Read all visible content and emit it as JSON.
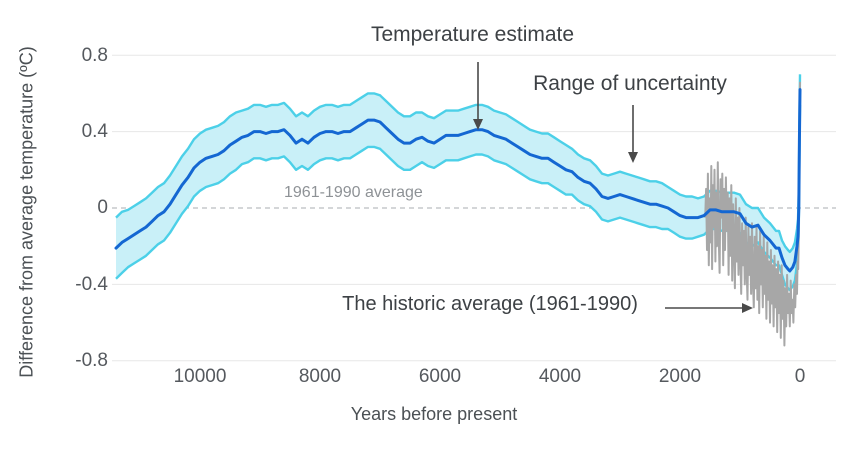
{
  "chart_data": {
    "type": "line",
    "description": "Holocene temperature reconstruction with uncertainty band, recent annual record and modern spike",
    "x_axis": {
      "label": "Years before present",
      "ticks": [
        10000,
        8000,
        6000,
        4000,
        2000,
        0
      ],
      "tick_labels": [
        "10000",
        "8000",
        "6000",
        "4000",
        "2000",
        "0"
      ],
      "range": [
        11500,
        0
      ]
    },
    "y_axis": {
      "label": "Difference from average temperature (ºC)",
      "ticks": [
        0.8,
        0.4,
        0,
        -0.4,
        -0.8
      ],
      "tick_labels": [
        "0.8",
        "0.4",
        "0",
        "-0.4",
        "-0.8"
      ],
      "range": [
        -0.9,
        0.85
      ]
    },
    "baseline": {
      "label": "1961-1990 average",
      "value": 0
    },
    "colors": {
      "line": "#1467d2",
      "band_fill": "#c9f0f8",
      "band_edge": "#4cd0e8",
      "gray": "#a7a7a7",
      "grid": "#e7e7e7",
      "baseline": "#a8adb2",
      "text_dark": "#3d4145",
      "text_gray": "#8e9296"
    },
    "legend_position": "annotated-inline",
    "grid": true,
    "series": [
      {
        "name": "Temperature estimate",
        "type": "line-with-band",
        "band_name": "Range of uncertainty",
        "points_format": [
          "years_before_present",
          "mean_degC",
          "band_half_width_degC"
        ],
        "points": [
          [
            11400,
            -0.21,
            0.16
          ],
          [
            11300,
            -0.18,
            0.16
          ],
          [
            11200,
            -0.16,
            0.15
          ],
          [
            11100,
            -0.14,
            0.15
          ],
          [
            11000,
            -0.12,
            0.15
          ],
          [
            10900,
            -0.1,
            0.15
          ],
          [
            10800,
            -0.07,
            0.15
          ],
          [
            10700,
            -0.04,
            0.15
          ],
          [
            10600,
            -0.02,
            0.15
          ],
          [
            10500,
            0.02,
            0.15
          ],
          [
            10400,
            0.07,
            0.15
          ],
          [
            10300,
            0.12,
            0.15
          ],
          [
            10200,
            0.16,
            0.15
          ],
          [
            10100,
            0.21,
            0.15
          ],
          [
            10000,
            0.24,
            0.15
          ],
          [
            9900,
            0.26,
            0.15
          ],
          [
            9800,
            0.27,
            0.15
          ],
          [
            9700,
            0.28,
            0.15
          ],
          [
            9600,
            0.3,
            0.15
          ],
          [
            9500,
            0.33,
            0.15
          ],
          [
            9400,
            0.35,
            0.15
          ],
          [
            9300,
            0.37,
            0.14
          ],
          [
            9200,
            0.38,
            0.14
          ],
          [
            9100,
            0.4,
            0.14
          ],
          [
            9000,
            0.4,
            0.14
          ],
          [
            8900,
            0.39,
            0.14
          ],
          [
            8800,
            0.4,
            0.14
          ],
          [
            8700,
            0.4,
            0.14
          ],
          [
            8600,
            0.41,
            0.14
          ],
          [
            8500,
            0.38,
            0.14
          ],
          [
            8400,
            0.34,
            0.14
          ],
          [
            8300,
            0.36,
            0.14
          ],
          [
            8200,
            0.34,
            0.14
          ],
          [
            8100,
            0.37,
            0.14
          ],
          [
            8000,
            0.39,
            0.14
          ],
          [
            7900,
            0.4,
            0.14
          ],
          [
            7800,
            0.4,
            0.14
          ],
          [
            7700,
            0.39,
            0.14
          ],
          [
            7600,
            0.4,
            0.14
          ],
          [
            7500,
            0.4,
            0.14
          ],
          [
            7400,
            0.42,
            0.14
          ],
          [
            7300,
            0.44,
            0.14
          ],
          [
            7200,
            0.46,
            0.14
          ],
          [
            7100,
            0.46,
            0.14
          ],
          [
            7000,
            0.45,
            0.14
          ],
          [
            6900,
            0.42,
            0.14
          ],
          [
            6800,
            0.39,
            0.14
          ],
          [
            6700,
            0.36,
            0.14
          ],
          [
            6600,
            0.34,
            0.14
          ],
          [
            6500,
            0.34,
            0.14
          ],
          [
            6400,
            0.36,
            0.14
          ],
          [
            6300,
            0.37,
            0.13
          ],
          [
            6200,
            0.35,
            0.13
          ],
          [
            6100,
            0.34,
            0.13
          ],
          [
            6000,
            0.36,
            0.13
          ],
          [
            5900,
            0.38,
            0.13
          ],
          [
            5800,
            0.38,
            0.13
          ],
          [
            5700,
            0.38,
            0.13
          ],
          [
            5600,
            0.39,
            0.13
          ],
          [
            5500,
            0.4,
            0.13
          ],
          [
            5400,
            0.41,
            0.13
          ],
          [
            5300,
            0.41,
            0.13
          ],
          [
            5200,
            0.4,
            0.13
          ],
          [
            5100,
            0.38,
            0.13
          ],
          [
            5000,
            0.37,
            0.13
          ],
          [
            4900,
            0.36,
            0.13
          ],
          [
            4800,
            0.34,
            0.13
          ],
          [
            4700,
            0.32,
            0.13
          ],
          [
            4600,
            0.3,
            0.13
          ],
          [
            4500,
            0.28,
            0.13
          ],
          [
            4400,
            0.27,
            0.13
          ],
          [
            4300,
            0.26,
            0.13
          ],
          [
            4200,
            0.26,
            0.13
          ],
          [
            4100,
            0.24,
            0.13
          ],
          [
            4000,
            0.22,
            0.13
          ],
          [
            3900,
            0.2,
            0.13
          ],
          [
            3800,
            0.19,
            0.12
          ],
          [
            3700,
            0.16,
            0.12
          ],
          [
            3600,
            0.14,
            0.12
          ],
          [
            3500,
            0.13,
            0.12
          ],
          [
            3400,
            0.1,
            0.12
          ],
          [
            3300,
            0.06,
            0.12
          ],
          [
            3200,
            0.05,
            0.12
          ],
          [
            3100,
            0.06,
            0.12
          ],
          [
            3000,
            0.07,
            0.12
          ],
          [
            2900,
            0.06,
            0.12
          ],
          [
            2800,
            0.05,
            0.12
          ],
          [
            2700,
            0.04,
            0.12
          ],
          [
            2600,
            0.03,
            0.12
          ],
          [
            2500,
            0.02,
            0.12
          ],
          [
            2400,
            0.02,
            0.12
          ],
          [
            2300,
            0.01,
            0.12
          ],
          [
            2200,
            0.0,
            0.11
          ],
          [
            2100,
            -0.02,
            0.11
          ],
          [
            2000,
            -0.04,
            0.11
          ],
          [
            1900,
            -0.05,
            0.11
          ],
          [
            1800,
            -0.05,
            0.11
          ],
          [
            1700,
            -0.05,
            0.1
          ],
          [
            1600,
            -0.04,
            0.1
          ],
          [
            1500,
            -0.01,
            0.1
          ],
          [
            1400,
            -0.01,
            0.1
          ],
          [
            1300,
            -0.02,
            0.1
          ],
          [
            1200,
            -0.02,
            0.1
          ],
          [
            1100,
            -0.02,
            0.1
          ],
          [
            1000,
            -0.03,
            0.1
          ],
          [
            900,
            -0.08,
            0.1
          ],
          [
            800,
            -0.1,
            0.1
          ],
          [
            700,
            -0.09,
            0.09
          ],
          [
            600,
            -0.14,
            0.09
          ],
          [
            500,
            -0.17,
            0.09
          ],
          [
            400,
            -0.21,
            0.09
          ],
          [
            350,
            -0.21,
            0.09
          ],
          [
            300,
            -0.26,
            0.09
          ],
          [
            250,
            -0.3,
            0.1
          ],
          [
            200,
            -0.32,
            0.1
          ],
          [
            170,
            -0.33,
            0.1
          ],
          [
            120,
            -0.31,
            0.1
          ],
          [
            85,
            -0.28,
            0.1
          ],
          [
            50,
            -0.2,
            0.09
          ],
          [
            33,
            -0.15,
            0.09
          ],
          [
            20,
            0.0,
            0.09
          ],
          [
            10,
            0.35,
            0.09
          ],
          [
            0,
            0.62,
            0.08
          ]
        ]
      },
      {
        "name": "The historic average (1961-1990)",
        "type": "line",
        "points_format": [
          "years_before_present",
          "degC"
        ],
        "points": [
          [
            1580,
            -0.05
          ],
          [
            1565,
            0.1
          ],
          [
            1550,
            -0.22
          ],
          [
            1535,
            0.18
          ],
          [
            1520,
            -0.3
          ],
          [
            1505,
            0.05
          ],
          [
            1490,
            -0.18
          ],
          [
            1478,
            0.22
          ],
          [
            1465,
            -0.32
          ],
          [
            1450,
            0.12
          ],
          [
            1438,
            -0.1
          ],
          [
            1425,
            0.2
          ],
          [
            1410,
            -0.28
          ],
          [
            1398,
            0.08
          ],
          [
            1385,
            -0.2
          ],
          [
            1370,
            0.24
          ],
          [
            1355,
            -0.15
          ],
          [
            1340,
            -0.34
          ],
          [
            1325,
            0.15
          ],
          [
            1310,
            -0.05
          ],
          [
            1295,
            0.18
          ],
          [
            1280,
            -0.3
          ],
          [
            1265,
            0.1
          ],
          [
            1250,
            -0.22
          ],
          [
            1235,
            0.16
          ],
          [
            1220,
            -0.12
          ],
          [
            1205,
            0.08
          ],
          [
            1190,
            -0.35
          ],
          [
            1175,
            0.05
          ],
          [
            1160,
            -0.25
          ],
          [
            1145,
            0.12
          ],
          [
            1130,
            -0.38
          ],
          [
            1115,
            0.02
          ],
          [
            1100,
            -0.2
          ],
          [
            1085,
            -0.42
          ],
          [
            1070,
            0.05
          ],
          [
            1055,
            -0.28
          ],
          [
            1040,
            -0.05
          ],
          [
            1025,
            -0.35
          ],
          [
            1010,
            0.0
          ],
          [
            995,
            -0.25
          ],
          [
            980,
            -0.45
          ],
          [
            965,
            -0.08
          ],
          [
            950,
            -0.3
          ],
          [
            935,
            -0.12
          ],
          [
            920,
            -0.4
          ],
          [
            905,
            -0.05
          ],
          [
            890,
            -0.32
          ],
          [
            875,
            -0.48
          ],
          [
            860,
            -0.1
          ],
          [
            845,
            -0.35
          ],
          [
            830,
            -0.15
          ],
          [
            815,
            -0.45
          ],
          [
            800,
            -0.08
          ],
          [
            785,
            -0.38
          ],
          [
            770,
            -0.52
          ],
          [
            755,
            -0.15
          ],
          [
            740,
            -0.42
          ],
          [
            725,
            -0.1
          ],
          [
            710,
            -0.48
          ],
          [
            695,
            -0.2
          ],
          [
            680,
            -0.55
          ],
          [
            665,
            -0.12
          ],
          [
            650,
            -0.4
          ],
          [
            635,
            -0.22
          ],
          [
            620,
            -0.52
          ],
          [
            605,
            -0.15
          ],
          [
            590,
            -0.45
          ],
          [
            575,
            -0.25
          ],
          [
            560,
            -0.58
          ],
          [
            545,
            -0.18
          ],
          [
            530,
            -0.48
          ],
          [
            515,
            -0.28
          ],
          [
            500,
            -0.6
          ],
          [
            485,
            -0.22
          ],
          [
            470,
            -0.5
          ],
          [
            455,
            -0.3
          ],
          [
            440,
            -0.62
          ],
          [
            425,
            -0.25
          ],
          [
            410,
            -0.52
          ],
          [
            395,
            -0.32
          ],
          [
            380,
            -0.65
          ],
          [
            365,
            -0.28
          ],
          [
            350,
            -0.55
          ],
          [
            335,
            -0.35
          ],
          [
            320,
            -0.68
          ],
          [
            305,
            -0.3
          ],
          [
            290,
            -0.58
          ],
          [
            275,
            -0.38
          ],
          [
            260,
            -0.72
          ],
          [
            245,
            -0.42
          ],
          [
            230,
            -0.62
          ],
          [
            215,
            -0.35
          ],
          [
            200,
            -0.55
          ],
          [
            185,
            -0.45
          ],
          [
            170,
            -0.62
          ],
          [
            155,
            -0.38
          ],
          [
            140,
            -0.55
          ],
          [
            125,
            -0.48
          ],
          [
            110,
            -0.6
          ],
          [
            95,
            -0.4
          ],
          [
            80,
            -0.52
          ],
          [
            65,
            -0.35
          ],
          [
            50,
            -0.45
          ],
          [
            40,
            -0.28
          ],
          [
            30,
            -0.32
          ],
          [
            20,
            -0.12
          ],
          [
            10,
            0.28
          ],
          [
            0,
            0.66
          ]
        ]
      }
    ]
  },
  "annotations": {
    "temperature_estimate": "Temperature estimate",
    "range_of_uncertainty": "Range of uncertainty",
    "baseline_label": "1961-1990 average",
    "historic_average": "The historic average (1961-1990)"
  }
}
